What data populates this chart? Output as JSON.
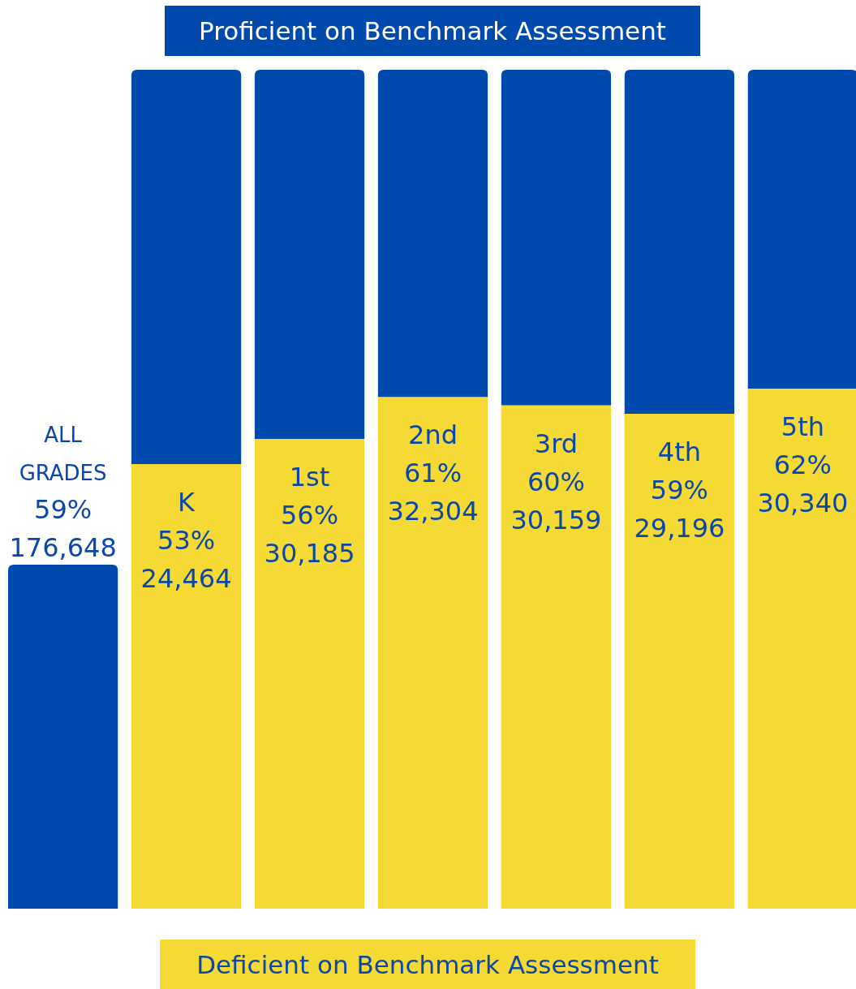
{
  "chart_data": {
    "type": "bar",
    "stacked": true,
    "categories": [
      "ALL GRADES",
      "K",
      "1st",
      "2nd",
      "3rd",
      "4th",
      "5th"
    ],
    "series": [
      {
        "name": "Deficient on Benchmark Assessment",
        "color": "#f5da35",
        "values": [
          null,
          53,
          56,
          61,
          60,
          59,
          62
        ],
        "value_labels": [
          "59%",
          "53%",
          "56%",
          "61%",
          "60%",
          "59%",
          "62%"
        ]
      },
      {
        "name": "Proficient on Benchmark Assessment",
        "color": "#004aad",
        "values": [
          41,
          47,
          44,
          39,
          40,
          41,
          38
        ]
      }
    ],
    "ylim": [
      0,
      100
    ],
    "legend": "bottom",
    "annotations": [
      "176,648",
      "24,464",
      "30,185",
      "32,304",
      "30,159",
      "29,196",
      "30,340"
    ]
  }
}
